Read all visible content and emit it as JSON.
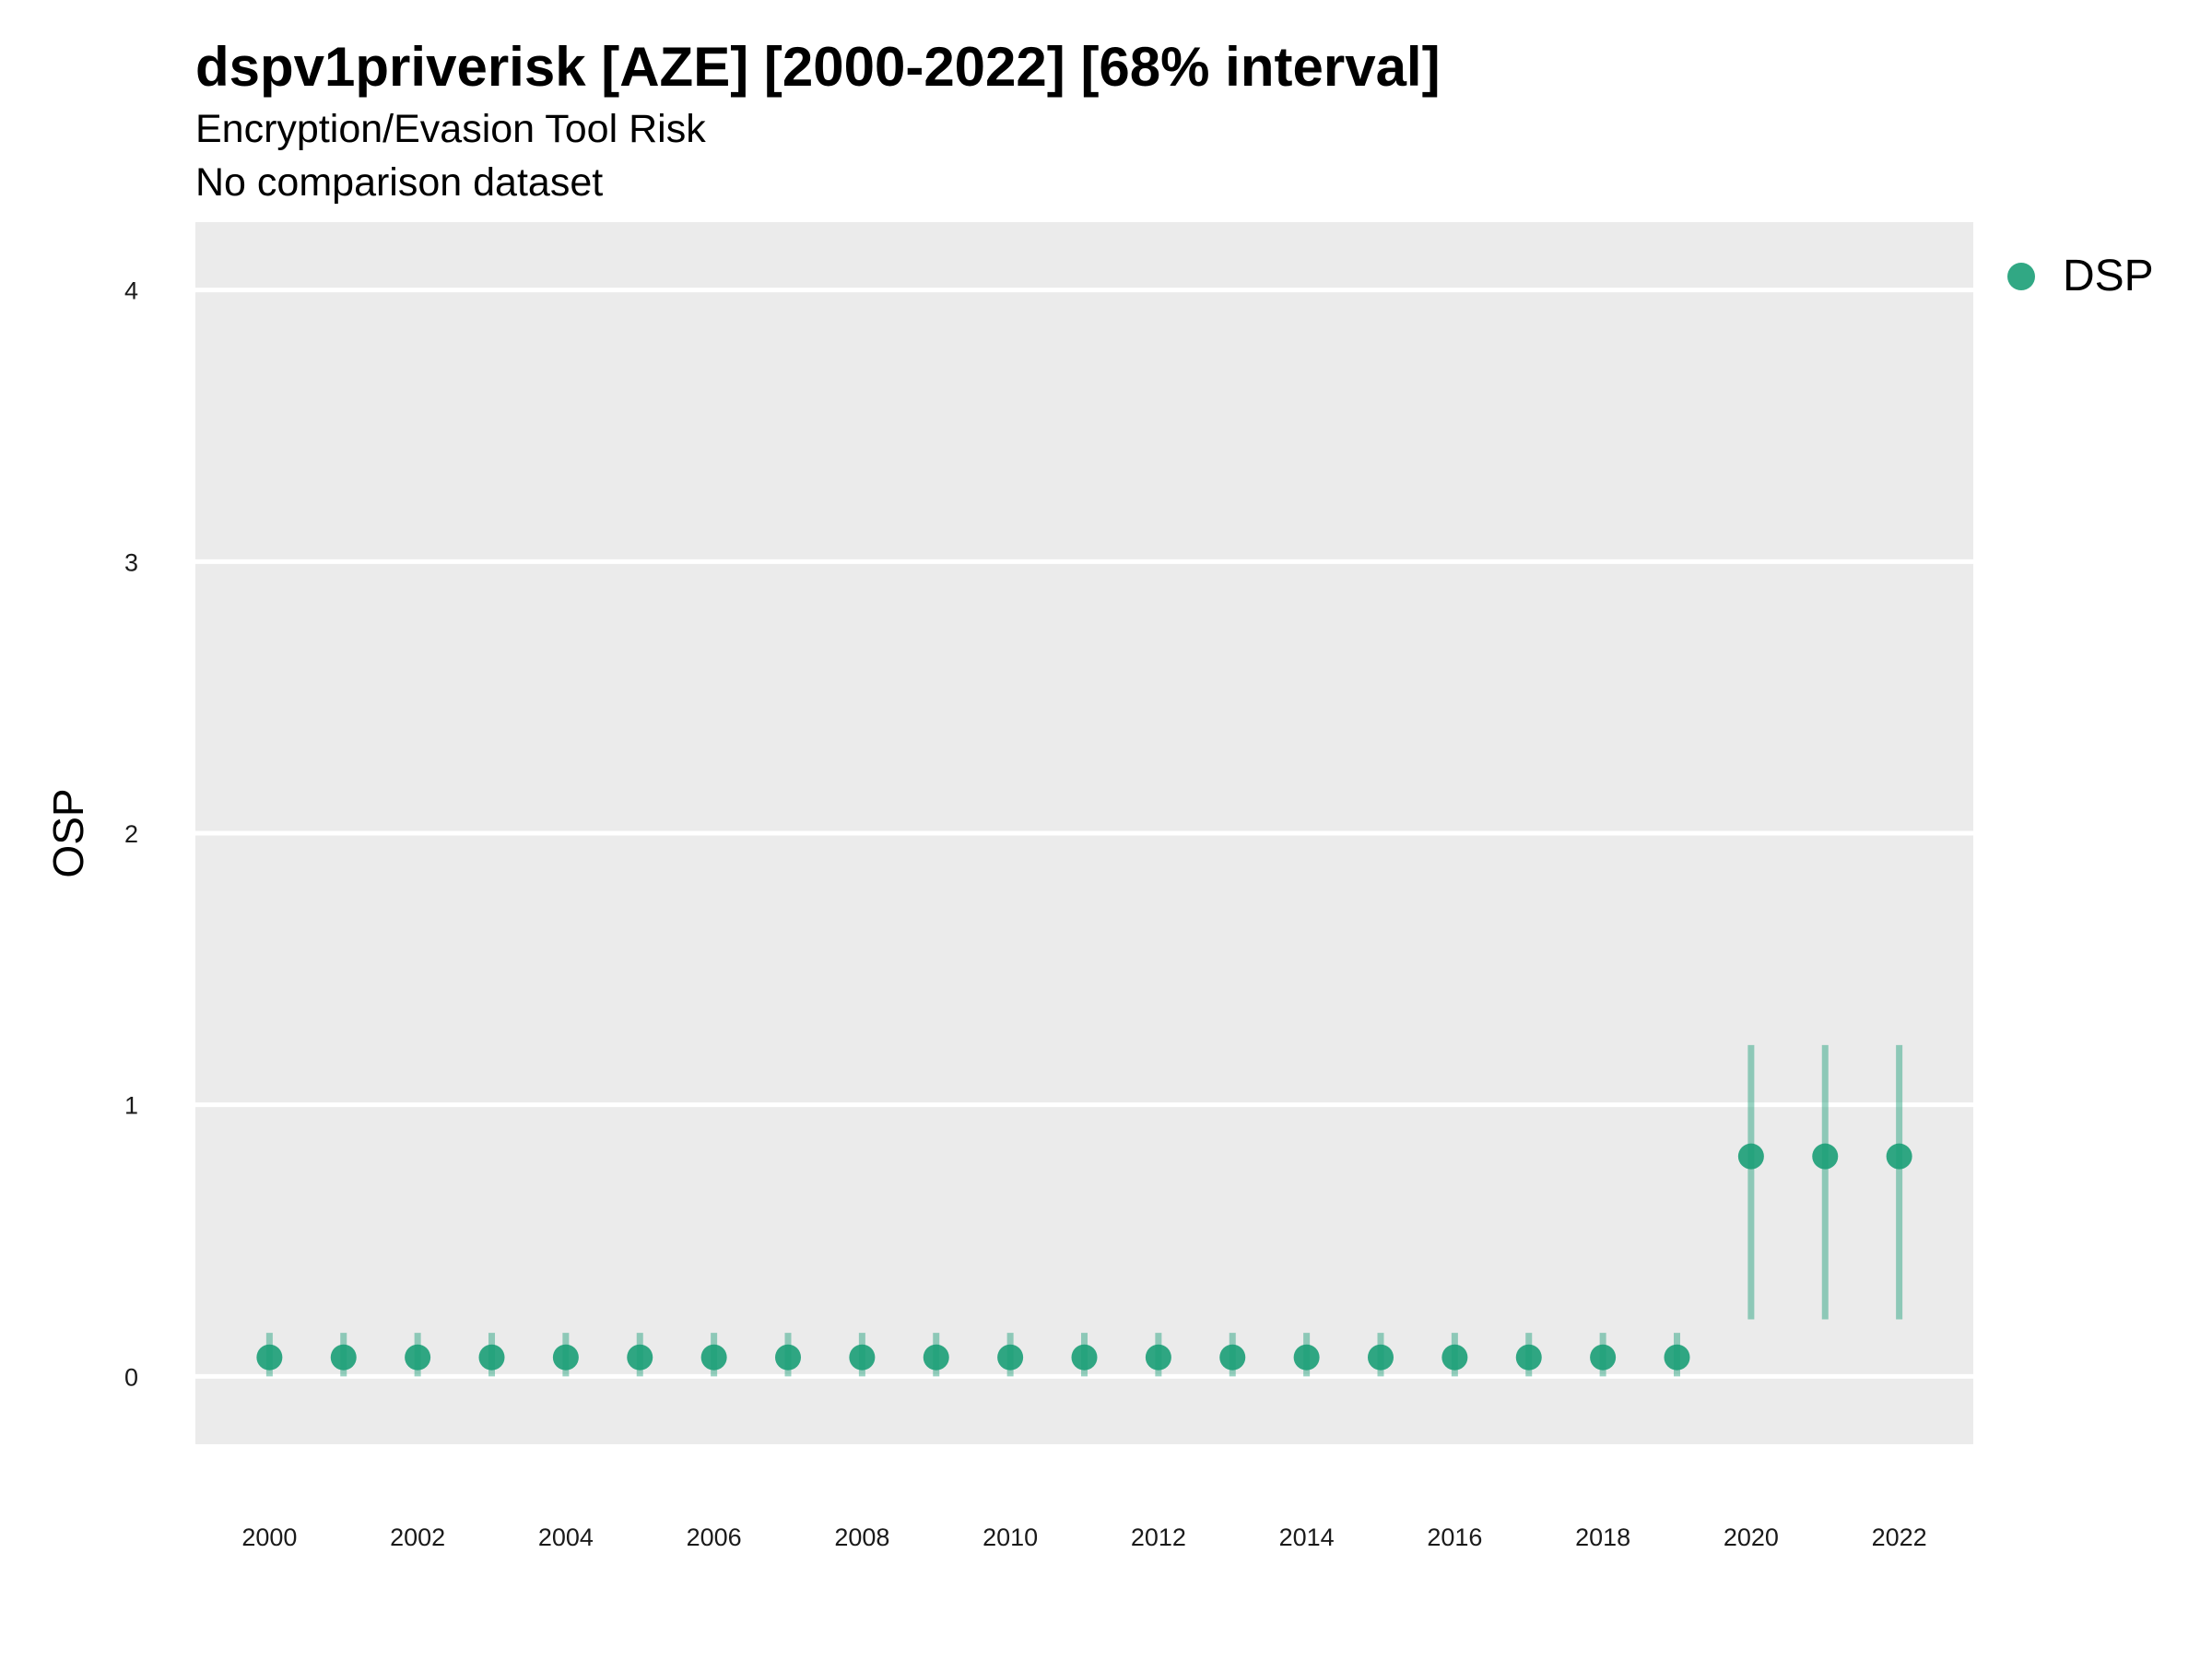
{
  "chart_data": {
    "type": "scatter",
    "title": "dspv1priverisk [AZE] [2000-2022] [68% interval]",
    "subtitle": "Encryption/Evasion Tool Risk",
    "caption_line": "No comparison dataset",
    "xlabel": "",
    "ylabel": "OSP",
    "x_ticks": [
      "2000",
      "2002",
      "2004",
      "2006",
      "2008",
      "2010",
      "2012",
      "2014",
      "2016",
      "2018",
      "2020",
      "2022"
    ],
    "y_ticks": [
      "0",
      "1",
      "2",
      "3",
      "4"
    ],
    "xlim": [
      1999,
      2023
    ],
    "ylim": [
      -0.25,
      4.25
    ],
    "grid": true,
    "legend_position": "right",
    "series": [
      {
        "name": "DSP",
        "color": "#1b9e77",
        "x": [
          2000,
          2001,
          2002,
          2003,
          2004,
          2005,
          2006,
          2007,
          2008,
          2009,
          2010,
          2011,
          2012,
          2013,
          2014,
          2015,
          2016,
          2017,
          2018,
          2019,
          2020,
          2021,
          2022
        ],
        "y": [
          0.07,
          0.07,
          0.07,
          0.07,
          0.07,
          0.07,
          0.07,
          0.07,
          0.07,
          0.07,
          0.07,
          0.07,
          0.07,
          0.07,
          0.07,
          0.07,
          0.07,
          0.07,
          0.07,
          0.07,
          0.81,
          0.81,
          0.81
        ],
        "lower": [
          0.0,
          0.0,
          0.0,
          0.0,
          0.0,
          0.0,
          0.0,
          0.0,
          0.0,
          0.0,
          0.0,
          0.0,
          0.0,
          0.0,
          0.0,
          0.0,
          0.0,
          0.0,
          0.0,
          0.0,
          0.21,
          0.21,
          0.21
        ],
        "upper": [
          0.16,
          0.16,
          0.16,
          0.16,
          0.16,
          0.16,
          0.16,
          0.16,
          0.16,
          0.16,
          0.16,
          0.16,
          0.16,
          0.16,
          0.16,
          0.16,
          0.16,
          0.16,
          0.16,
          0.16,
          1.22,
          1.22,
          1.22
        ]
      }
    ]
  }
}
